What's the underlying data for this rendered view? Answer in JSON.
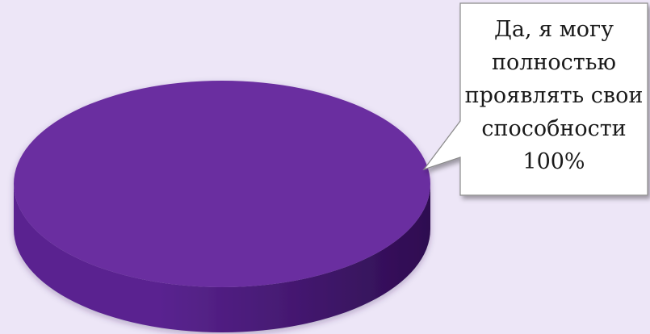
{
  "chart_data": {
    "type": "pie",
    "style": "3d",
    "slices": [
      {
        "label_lines": [
          "Да, я могу",
          "полностью",
          "проявлять свои",
          "способности",
          "100%"
        ],
        "value": 100,
        "color": "#6a2ea0",
        "side_color_dark": "#2e0d50",
        "side_color_light": "#5a2490"
      }
    ],
    "legend": "none",
    "data_labels": "callout"
  }
}
